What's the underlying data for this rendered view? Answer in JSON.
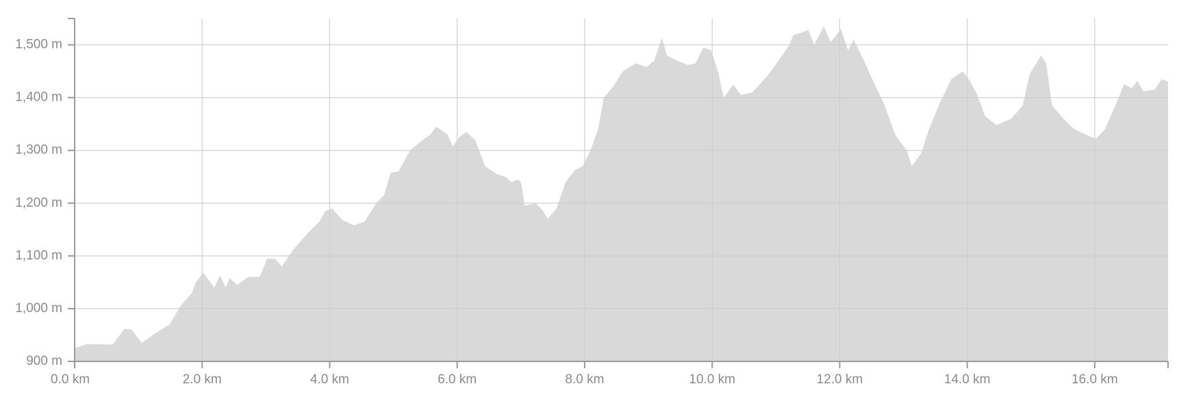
{
  "chart_data": {
    "type": "area",
    "color": "#d9d9d9",
    "grid": true,
    "xlim": [
      0,
      17.15
    ],
    "ylim": [
      900,
      1550
    ],
    "xticks": [
      {
        "value": 0,
        "label": "0.0 km"
      },
      {
        "value": 2,
        "label": "2.0 km"
      },
      {
        "value": 4,
        "label": "4.0 km"
      },
      {
        "value": 6,
        "label": "6.0 km"
      },
      {
        "value": 8,
        "label": "8.0 km"
      },
      {
        "value": 10,
        "label": "10.0 km"
      },
      {
        "value": 12,
        "label": "12.0 km"
      },
      {
        "value": 14,
        "label": "14.0 km"
      },
      {
        "value": 16,
        "label": "16.0 km"
      }
    ],
    "yticks": [
      {
        "value": 900,
        "label": "900 m"
      },
      {
        "value": 1000,
        "label": "1,000 m"
      },
      {
        "value": 1100,
        "label": "1,100 m"
      },
      {
        "value": 1200,
        "label": "1,200 m"
      },
      {
        "value": 1300,
        "label": "1,300 m"
      },
      {
        "value": 1400,
        "label": "1,400 m"
      },
      {
        "value": 1500,
        "label": "1,500 m"
      }
    ],
    "x": [
      0,
      0.19,
      0.6,
      0.78,
      0.9,
      1.05,
      1.25,
      1.49,
      1.66,
      1.84,
      1.9,
      2.02,
      2.19,
      2.28,
      2.37,
      2.43,
      2.55,
      2.72,
      2.9,
      3.02,
      3.14,
      3.25,
      3.43,
      3.67,
      3.84,
      3.93,
      4.04,
      4.2,
      4.38,
      4.55,
      4.73,
      4.85,
      4.96,
      5.08,
      5.26,
      5.44,
      5.58,
      5.67,
      5.85,
      5.93,
      6.03,
      6.14,
      6.28,
      6.44,
      6.62,
      6.76,
      6.85,
      6.95,
      7.0,
      7.06,
      7.23,
      7.35,
      7.42,
      7.56,
      7.7,
      7.85,
      7.97,
      8.09,
      8.21,
      8.3,
      8.44,
      8.6,
      8.8,
      8.97,
      9.09,
      9.21,
      9.29,
      9.45,
      9.62,
      9.74,
      9.86,
      9.98,
      10.09,
      10.18,
      10.33,
      10.45,
      10.63,
      10.86,
      11.04,
      11.21,
      11.27,
      11.51,
      11.6,
      11.75,
      11.86,
      12.02,
      12.13,
      12.22,
      12.4,
      12.51,
      12.69,
      12.87,
      13.05,
      13.13,
      13.28,
      13.4,
      13.57,
      13.75,
      13.93,
      14.05,
      14.16,
      14.28,
      14.46,
      14.69,
      14.87,
      14.98,
      15.16,
      15.24,
      15.33,
      15.51,
      15.68,
      15.86,
      16.02,
      16.16,
      16.34,
      16.46,
      16.58,
      16.67,
      16.76,
      16.94,
      17.05,
      17.15
    ],
    "values": [
      925,
      933,
      932,
      962,
      960,
      935,
      952,
      970,
      1005,
      1030,
      1050,
      1068,
      1040,
      1063,
      1040,
      1058,
      1045,
      1060,
      1060,
      1095,
      1095,
      1080,
      1112,
      1145,
      1165,
      1185,
      1190,
      1168,
      1158,
      1165,
      1200,
      1215,
      1258,
      1260,
      1300,
      1318,
      1330,
      1345,
      1330,
      1308,
      1325,
      1335,
      1320,
      1270,
      1255,
      1250,
      1240,
      1245,
      1240,
      1195,
      1200,
      1185,
      1170,
      1190,
      1240,
      1263,
      1270,
      1300,
      1340,
      1400,
      1420,
      1450,
      1465,
      1458,
      1470,
      1513,
      1480,
      1470,
      1462,
      1465,
      1495,
      1490,
      1450,
      1400,
      1425,
      1405,
      1410,
      1440,
      1470,
      1500,
      1518,
      1528,
      1500,
      1535,
      1505,
      1530,
      1490,
      1510,
      1465,
      1435,
      1390,
      1330,
      1300,
      1270,
      1295,
      1340,
      1390,
      1435,
      1450,
      1430,
      1405,
      1365,
      1348,
      1360,
      1385,
      1445,
      1480,
      1465,
      1385,
      1360,
      1340,
      1330,
      1322,
      1340,
      1390,
      1425,
      1418,
      1432,
      1412,
      1415,
      1435,
      1430
    ]
  }
}
